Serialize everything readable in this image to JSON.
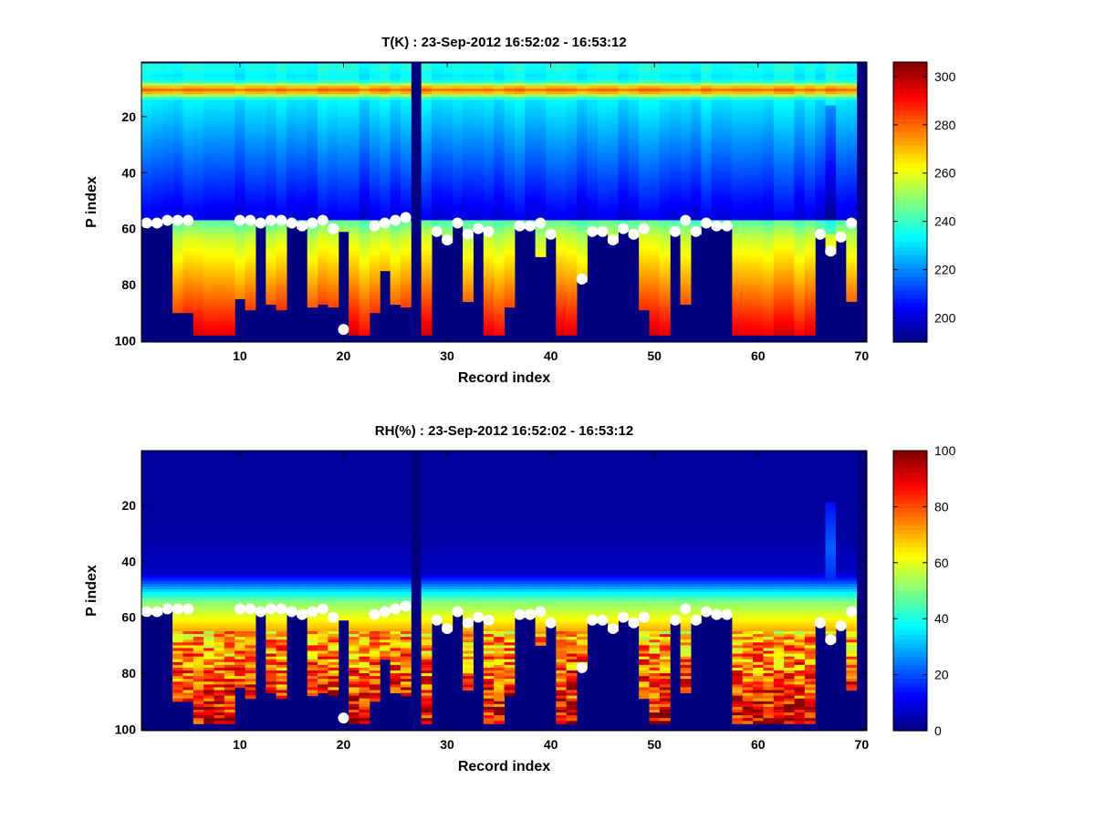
{
  "chart_data": [
    {
      "type": "heatmap",
      "title": "T(K) : 23-Sep-2012 16:52:02 - 16:53:12",
      "xlabel": "Record index",
      "ylabel": "P index",
      "xlim": [
        0.5,
        70.5
      ],
      "ylim": [
        100,
        1
      ],
      "y_reversed": true,
      "xticks": [
        10,
        20,
        30,
        40,
        50,
        60,
        70
      ],
      "yticks": [
        20,
        40,
        60,
        80,
        100
      ],
      "colorbar": {
        "colormap": "jet",
        "range": [
          190,
          306
        ],
        "ticks": [
          200,
          220,
          240,
          260,
          280,
          300
        ]
      },
      "masked_value": 190,
      "markers": {
        "color": "#ffffff",
        "shape": "circle",
        "x": [
          1,
          2,
          3,
          4,
          5,
          10,
          11,
          12,
          13,
          14,
          15,
          16,
          17,
          18,
          19,
          20,
          23,
          24,
          25,
          26,
          29,
          30,
          31,
          32,
          33,
          34,
          37,
          38,
          39,
          40,
          43,
          44,
          45,
          46,
          47,
          48,
          49,
          52,
          53,
          54,
          55,
          56,
          57,
          66,
          67,
          68,
          69
        ],
        "y": [
          58,
          58,
          57,
          57,
          57,
          57,
          57,
          58,
          57,
          57,
          58,
          59,
          58,
          57,
          60,
          96,
          59,
          58,
          57,
          56,
          61,
          64,
          58,
          62,
          60,
          61,
          59,
          59,
          58,
          62,
          78,
          61,
          61,
          64,
          60,
          62,
          60,
          61,
          57,
          61,
          58,
          59,
          59,
          62,
          68,
          63,
          58
        ]
      },
      "bottom_boundary": {
        "x": [
          1,
          2,
          3,
          4,
          5,
          6,
          7,
          8,
          9,
          10,
          11,
          12,
          13,
          14,
          15,
          16,
          17,
          18,
          19,
          20,
          21,
          22,
          23,
          24,
          25,
          26,
          27,
          28,
          29,
          30,
          31,
          32,
          33,
          34,
          35,
          36,
          37,
          38,
          39,
          40,
          41,
          42,
          43,
          44,
          45,
          46,
          47,
          48,
          49,
          50,
          51,
          52,
          53,
          54,
          55,
          56,
          57,
          58,
          59,
          60,
          61,
          62,
          63,
          64,
          65,
          66,
          67,
          68,
          69,
          70
        ],
        "y": [
          58,
          58,
          57,
          89,
          89,
          97,
          97,
          97,
          97,
          84,
          88,
          58,
          86,
          88,
          58,
          59,
          87,
          86,
          87,
          60,
          97,
          97,
          89,
          74,
          86,
          87,
          0,
          97,
          61,
          64,
          58,
          85,
          60,
          97,
          97,
          87,
          59,
          59,
          69,
          62,
          97,
          97,
          78,
          61,
          61,
          64,
          60,
          62,
          88,
          97,
          97,
          61,
          86,
          61,
          58,
          59,
          59,
          97,
          97,
          97,
          97,
          97,
          97,
          97,
          97,
          62,
          68,
          63,
          85,
          0
        ]
      }
    },
    {
      "type": "heatmap",
      "title": "RH(%) : 23-Sep-2012 16:52:02 - 16:53:12",
      "xlabel": "Record index",
      "ylabel": "P index",
      "xlim": [
        0.5,
        70.5
      ],
      "ylim": [
        100,
        1
      ],
      "y_reversed": true,
      "xticks": [
        10,
        20,
        30,
        40,
        50,
        60,
        70
      ],
      "yticks": [
        20,
        40,
        60,
        80,
        100
      ],
      "colorbar": {
        "colormap": "jet",
        "range": [
          0,
          100
        ],
        "ticks": [
          0,
          20,
          40,
          60,
          80,
          100
        ]
      },
      "masked_value": 0,
      "markers": {
        "color": "#ffffff",
        "shape": "circle",
        "x": [
          1,
          2,
          3,
          4,
          5,
          10,
          11,
          12,
          13,
          14,
          15,
          16,
          17,
          18,
          19,
          20,
          23,
          24,
          25,
          26,
          29,
          30,
          31,
          32,
          33,
          34,
          37,
          38,
          39,
          40,
          43,
          44,
          45,
          46,
          47,
          48,
          49,
          52,
          53,
          54,
          55,
          56,
          57,
          66,
          67,
          68,
          69
        ],
        "y": [
          58,
          58,
          57,
          57,
          57,
          57,
          57,
          58,
          57,
          57,
          58,
          59,
          58,
          57,
          60,
          96,
          59,
          58,
          57,
          56,
          61,
          64,
          58,
          62,
          60,
          61,
          59,
          59,
          58,
          62,
          78,
          61,
          61,
          64,
          60,
          62,
          60,
          61,
          57,
          61,
          58,
          59,
          59,
          62,
          68,
          63,
          58
        ]
      },
      "bottom_boundary": {
        "x": [
          1,
          2,
          3,
          4,
          5,
          6,
          7,
          8,
          9,
          10,
          11,
          12,
          13,
          14,
          15,
          16,
          17,
          18,
          19,
          20,
          21,
          22,
          23,
          24,
          25,
          26,
          27,
          28,
          29,
          30,
          31,
          32,
          33,
          34,
          35,
          36,
          37,
          38,
          39,
          40,
          41,
          42,
          43,
          44,
          45,
          46,
          47,
          48,
          49,
          50,
          51,
          52,
          53,
          54,
          55,
          56,
          57,
          58,
          59,
          60,
          61,
          62,
          63,
          64,
          65,
          66,
          67,
          68,
          69,
          70
        ],
        "y": [
          58,
          58,
          57,
          89,
          89,
          97,
          97,
          97,
          97,
          84,
          88,
          58,
          86,
          88,
          58,
          59,
          87,
          86,
          87,
          60,
          97,
          97,
          89,
          74,
          86,
          87,
          0,
          97,
          61,
          64,
          58,
          85,
          60,
          97,
          97,
          87,
          59,
          59,
          69,
          62,
          97,
          97,
          78,
          61,
          61,
          64,
          60,
          62,
          88,
          97,
          97,
          61,
          86,
          61,
          58,
          59,
          59,
          97,
          97,
          97,
          97,
          97,
          97,
          97,
          97,
          62,
          68,
          63,
          85,
          0
        ]
      }
    }
  ]
}
